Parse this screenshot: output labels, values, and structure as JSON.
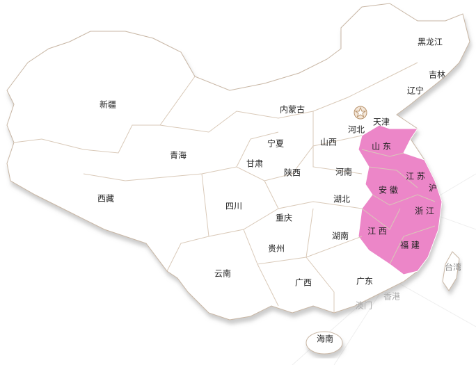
{
  "map": {
    "highlight_color": "#ec86c8",
    "regions": [
      {
        "label": "黑龙江",
        "highlighted": false
      },
      {
        "label": "吉林",
        "highlighted": false
      },
      {
        "label": "辽宁",
        "highlighted": false
      },
      {
        "label": "内蒙古",
        "highlighted": false
      },
      {
        "label": "新疆",
        "highlighted": false
      },
      {
        "label": "天津",
        "highlighted": false
      },
      {
        "label": "河北",
        "highlighted": false
      },
      {
        "label": "山 东",
        "highlighted": true
      },
      {
        "label": "宁夏",
        "highlighted": false
      },
      {
        "label": "山西",
        "highlighted": false
      },
      {
        "label": "青海",
        "highlighted": false
      },
      {
        "label": "甘肃",
        "highlighted": false
      },
      {
        "label": "陕西",
        "highlighted": false
      },
      {
        "label": "河南",
        "highlighted": false
      },
      {
        "label": "江 苏",
        "highlighted": true
      },
      {
        "label": "安 徽",
        "highlighted": true
      },
      {
        "label": "沪",
        "highlighted": true
      },
      {
        "label": "西藏",
        "highlighted": false
      },
      {
        "label": "四川",
        "highlighted": false
      },
      {
        "label": "湖北",
        "highlighted": false
      },
      {
        "label": "浙 江",
        "highlighted": true
      },
      {
        "label": "重庆",
        "highlighted": false
      },
      {
        "label": "湖南",
        "highlighted": false
      },
      {
        "label": "江 西",
        "highlighted": true
      },
      {
        "label": "贵州",
        "highlighted": false
      },
      {
        "label": "福 建",
        "highlighted": true
      },
      {
        "label": "云南",
        "highlighted": false
      },
      {
        "label": "广西",
        "highlighted": false
      },
      {
        "label": "广东",
        "highlighted": false
      },
      {
        "label": "台湾",
        "highlighted": false
      },
      {
        "label": "香港",
        "highlighted": false
      },
      {
        "label": "澳门",
        "highlighted": false
      },
      {
        "label": "海南",
        "highlighted": false
      }
    ]
  }
}
